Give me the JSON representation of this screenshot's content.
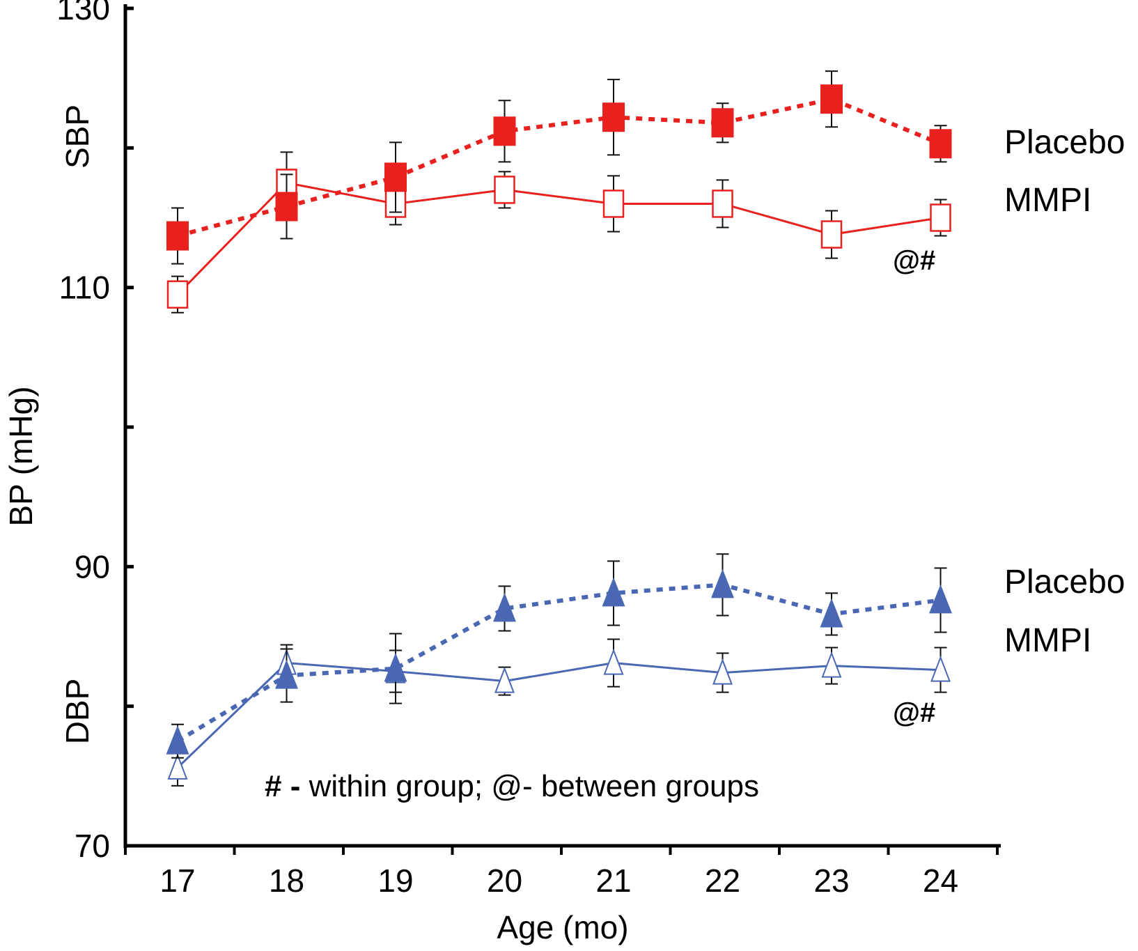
{
  "chart_data": {
    "type": "line",
    "xlabel": "Age (mo)",
    "ylabel": "BP (mHg)",
    "x": [
      17,
      18,
      19,
      20,
      21,
      22,
      23,
      24
    ],
    "x_ticks": [
      "17",
      "18",
      "19",
      "20",
      "21",
      "22",
      "23",
      "24"
    ],
    "ylim": [
      70,
      130
    ],
    "y_ticks": [
      "130",
      "110",
      "90",
      "70"
    ],
    "y_tick_values": [
      130,
      110,
      90,
      70
    ],
    "y_minor_ticks": [
      120,
      100,
      80
    ],
    "group_labels": {
      "sbp": "SBP",
      "dbp": "DBP"
    },
    "annotation": "@#",
    "note": {
      "bold": "# -",
      "text": " within group;  @- between groups"
    },
    "series": [
      {
        "key": "sbp_placebo",
        "name": "Placebo",
        "group": "SBP",
        "color": "#e8201e",
        "marker": "filled-square",
        "dashed": true,
        "values": [
          113.7,
          115.8,
          117.9,
          121.2,
          122.2,
          121.8,
          123.5,
          120.3
        ],
        "errors": [
          2.0,
          2.3,
          2.5,
          2.2,
          2.7,
          1.4,
          2.0,
          1.3
        ]
      },
      {
        "key": "sbp_mmpi",
        "name": "MMPI",
        "group": "SBP",
        "color": "#e8201e",
        "marker": "open-square",
        "dashed": false,
        "values": [
          109.5,
          117.5,
          116.0,
          117.0,
          116.0,
          116.0,
          113.8,
          115.0
        ],
        "errors": [
          1.3,
          2.2,
          1.5,
          1.3,
          2.0,
          1.7,
          1.7,
          1.3
        ]
      },
      {
        "key": "dbp_placebo",
        "name": "Placebo",
        "group": "DBP",
        "color": "#4a67b4",
        "marker": "filled-triangle",
        "dashed": true,
        "values": [
          77.5,
          82.2,
          82.7,
          87.0,
          88.1,
          88.7,
          86.6,
          87.6
        ],
        "errors": [
          1.2,
          1.9,
          2.5,
          1.6,
          2.3,
          2.2,
          1.5,
          2.3
        ]
      },
      {
        "key": "dbp_mmpi",
        "name": "MMPI",
        "group": "DBP",
        "color": "#4a67b4",
        "marker": "open-triangle",
        "dashed": false,
        "values": [
          75.6,
          83.1,
          82.5,
          81.8,
          83.1,
          82.4,
          82.9,
          82.6
        ],
        "errors": [
          1.3,
          1.3,
          1.5,
          1.0,
          1.7,
          1.4,
          1.3,
          1.6
        ]
      }
    ],
    "legend": [
      {
        "series": "sbp_placebo",
        "label": "Placebo"
      },
      {
        "series": "sbp_mmpi",
        "label": "MMPI"
      },
      {
        "series": "dbp_placebo",
        "label": "Placebo"
      },
      {
        "series": "dbp_mmpi",
        "label": "MMPI"
      }
    ],
    "grid": false,
    "legend_placement": "right"
  }
}
